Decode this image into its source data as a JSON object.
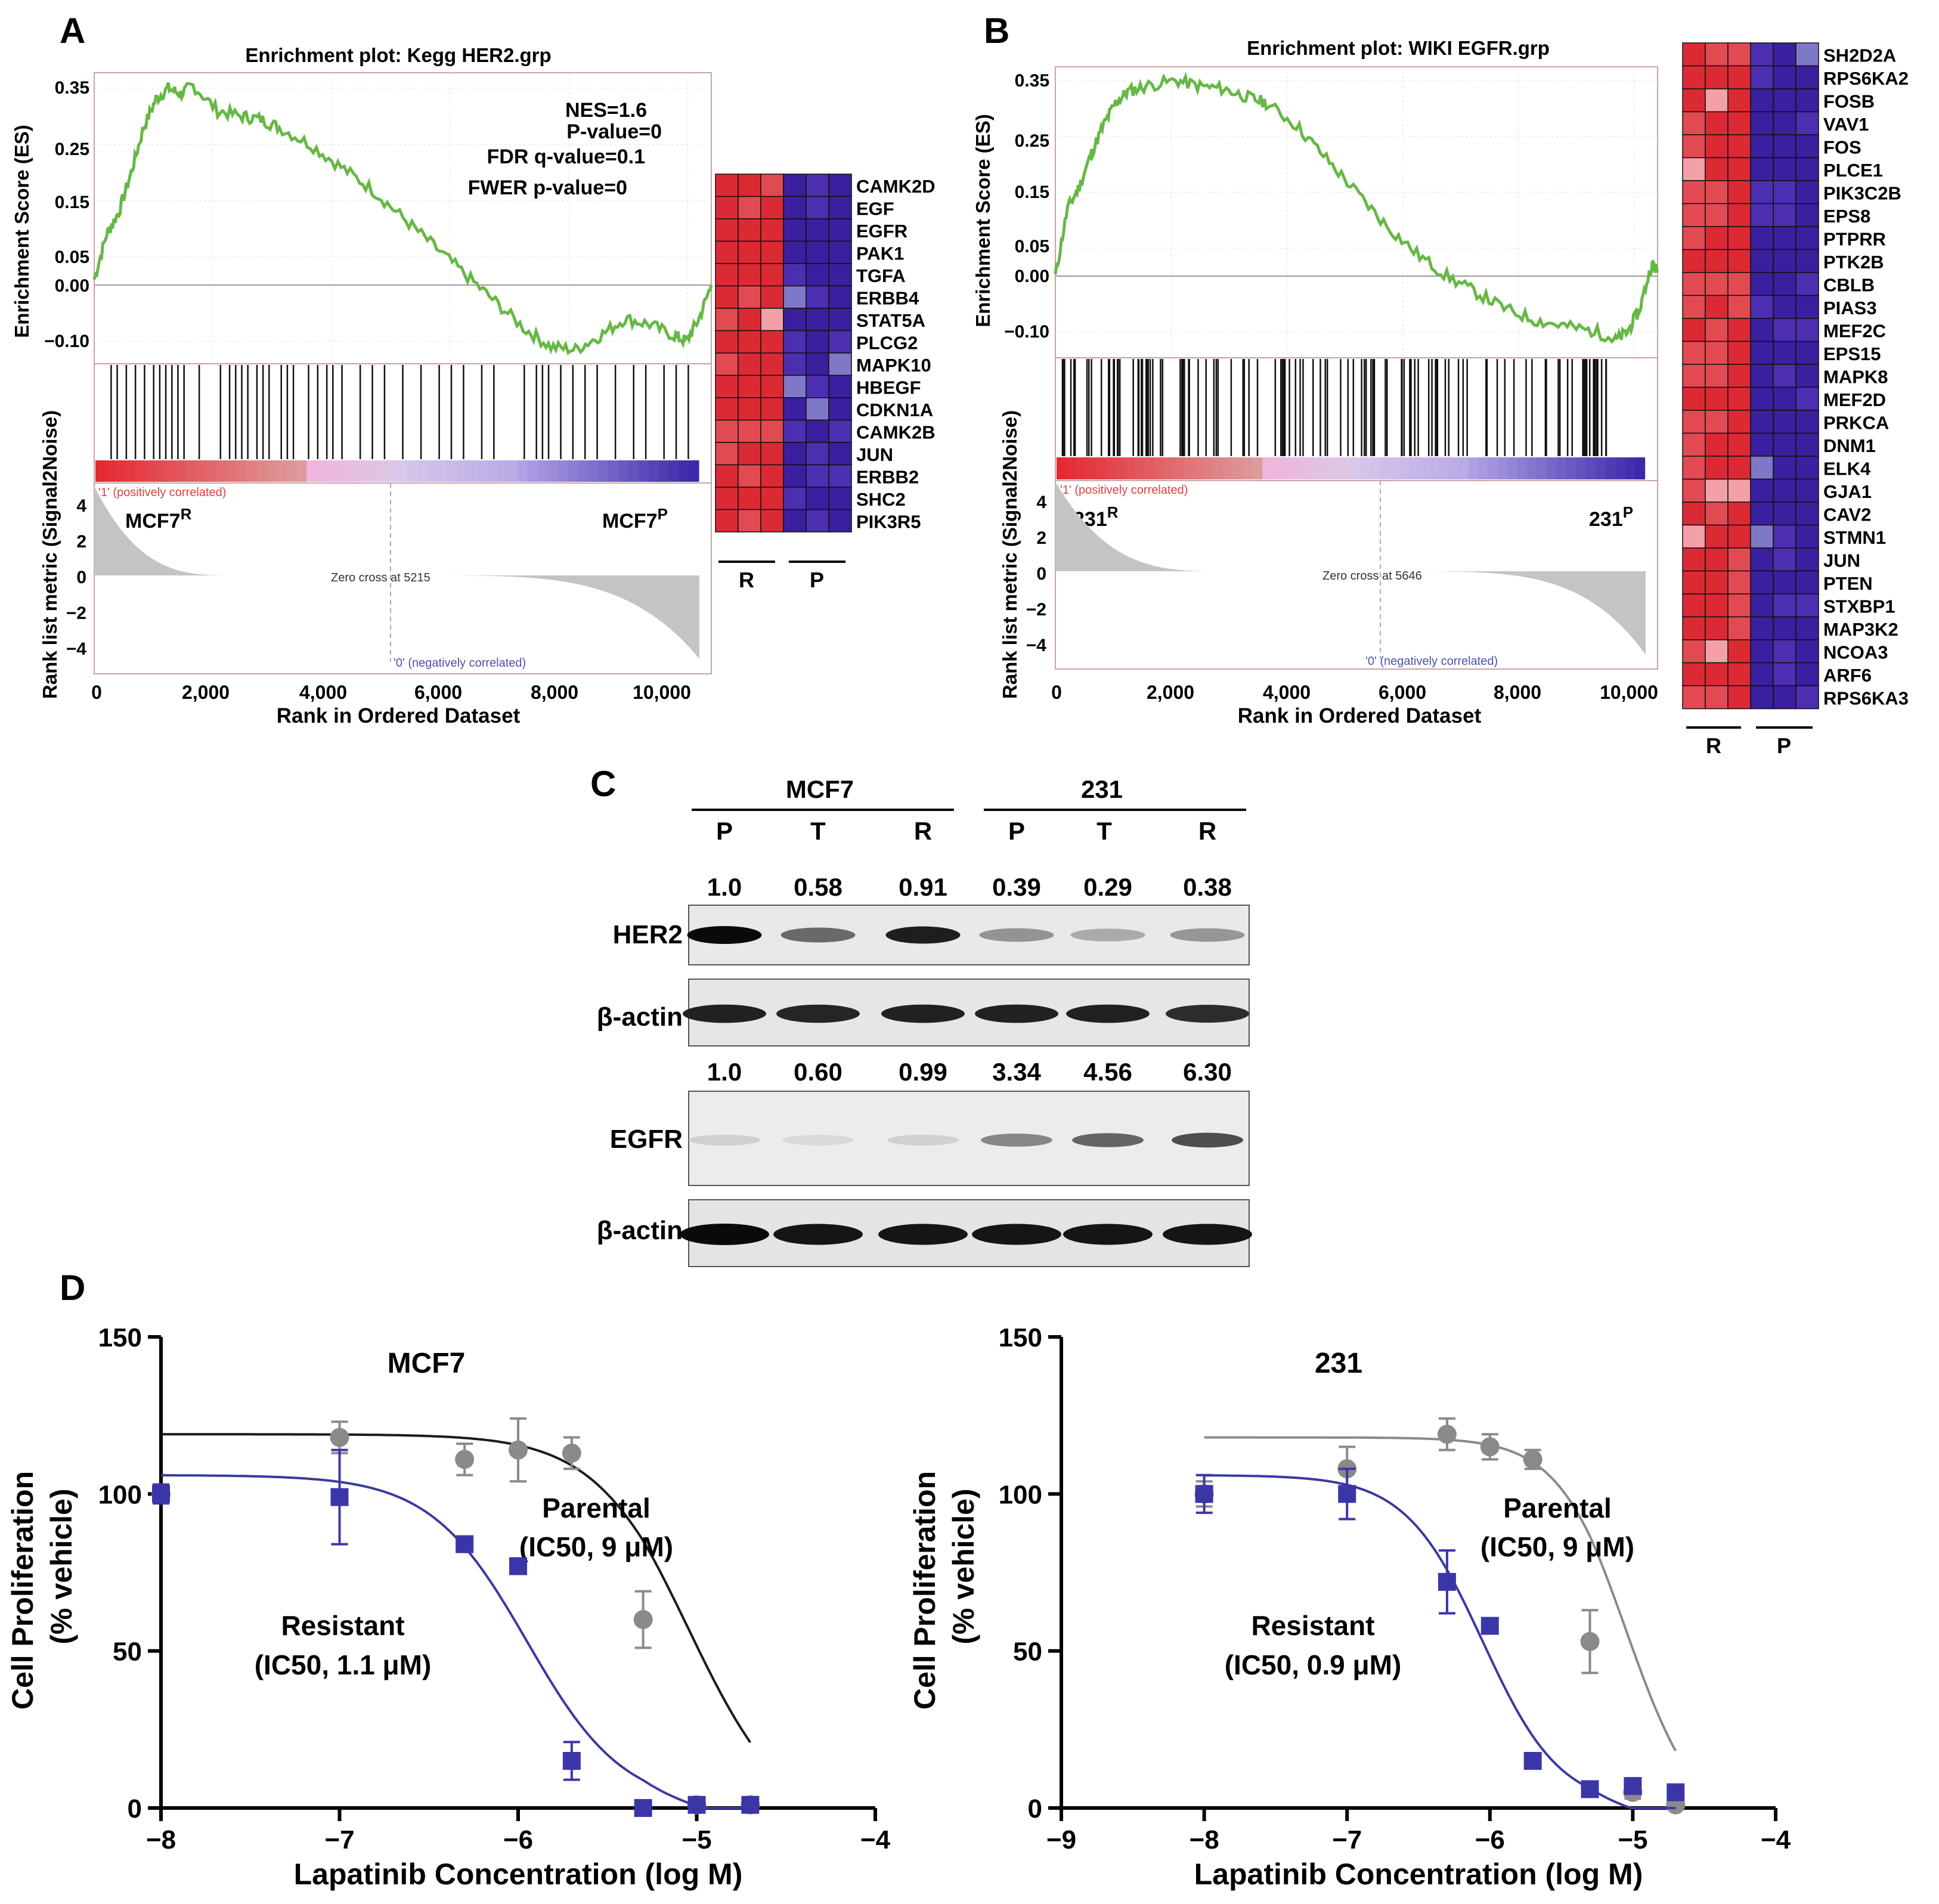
{
  "figure": {
    "panels": [
      "A",
      "B",
      "C",
      "D"
    ]
  },
  "colors": {
    "es_line": "#66b845",
    "heat_red": "#e1303a",
    "heat_blue": "#3a22a8",
    "parental": "#8a8a8a",
    "resistant": "#3b36a8",
    "fit_black": "#1a1a1a",
    "fit_blue": "#3a3aa0",
    "fit_grey": "#8a8a8a"
  },
  "panel_a": {
    "title": "Enrichment plot: Kegg HER2.grp",
    "stats": [
      "NES=1.6",
      "P-value=0",
      "FDR q-value=0.1",
      "FWER p-value=0"
    ],
    "es_axis_label": "Enrichment Score (ES)",
    "es_ticks": [
      "0.35",
      "0.25",
      "0.15",
      "0.05",
      "0.00",
      "−0.10"
    ],
    "metric_axis_label": "Rank list metric (Signal2Noise)",
    "metric_ticks": [
      "4",
      "2",
      "0",
      "−2",
      "−4"
    ],
    "pos_corr": "'1' (positively correlated)",
    "neg_corr": "'0' (negatively correlated)",
    "zero_cross": "Zero cross at 5215",
    "left_group": "MCF7",
    "left_sup": "R",
    "right_group": "MCF7",
    "right_sup": "P",
    "x_ticks": [
      "0",
      "2,000",
      "4,000",
      "6,000",
      "8,000",
      "10,000"
    ],
    "x_label": "Rank in Ordered Dataset",
    "genes": [
      "CAMK2D",
      "EGF",
      "EGFR",
      "PAK1",
      "TGFA",
      "ERBB4",
      "STAT5A",
      "PLCG2",
      "MAPK10",
      "HBEGF",
      "CDKN1A",
      "CAMK2B",
      "JUN",
      "ERBB2",
      "SHC2",
      "PIK3R5"
    ],
    "group_r": "R",
    "group_p": "P"
  },
  "panel_b": {
    "title": "Enrichment plot: WIKI EGFR.grp",
    "es_axis_label": "Enrichment Score (ES)",
    "es_ticks": [
      "0.35",
      "0.25",
      "0.15",
      "0.05",
      "0.00",
      "−0.10"
    ],
    "metric_axis_label": "Rank list metric (Signal2Noise)",
    "metric_ticks": [
      "4",
      "2",
      "0",
      "−2",
      "−4"
    ],
    "pos_corr": "'1' (positively correlated)",
    "neg_corr": "'0' (negatively correlated)",
    "zero_cross": "Zero cross at 5646",
    "left_group": "231",
    "left_sup": "R",
    "right_group": "231",
    "right_sup": "P",
    "x_ticks": [
      "0",
      "2,000",
      "4,000",
      "6,000",
      "8,000",
      "10,000"
    ],
    "x_label": "Rank in Ordered Dataset",
    "genes": [
      "SH2D2A",
      "RPS6KA2",
      "FOSB",
      "VAV1",
      "FOS",
      "PLCE1",
      "PIK3C2B",
      "EPS8",
      "PTPRR",
      "PTK2B",
      "CBLB",
      "PIAS3",
      "MEF2C",
      "EPS15",
      "MAPK8",
      "MEF2D",
      "PRKCA",
      "DNM1",
      "ELK4",
      "GJA1",
      "CAV2",
      "STMN1",
      "JUN",
      "PTEN",
      "STXBP1",
      "MAP3K2",
      "NCOA3",
      "ARF6",
      "RPS6KA3"
    ],
    "group_r": "R",
    "group_p": "P"
  },
  "panel_c": {
    "group1": "MCF7",
    "group2": "231",
    "lanes": [
      "P",
      "T",
      "R",
      "P",
      "T",
      "R"
    ],
    "her2_values": [
      "1.0",
      "0.58",
      "0.91",
      "0.39",
      "0.29",
      "0.38"
    ],
    "egfr_values": [
      "1.0",
      "0.60",
      "0.99",
      "3.34",
      "4.56",
      "6.30"
    ],
    "her2_intensity": [
      1.0,
      0.58,
      0.91,
      0.39,
      0.29,
      0.38
    ],
    "egfr_intensity": [
      0.12,
      0.08,
      0.12,
      0.45,
      0.6,
      0.7
    ],
    "actin_intensity": [
      0.9,
      0.88,
      0.9,
      0.9,
      0.9,
      0.85
    ],
    "actin2_intensity": [
      1.0,
      0.95,
      0.95,
      0.95,
      0.95,
      0.95
    ],
    "label_her2": "HER2",
    "label_actin": "β-actin",
    "label_egfr": "EGFR"
  },
  "chart_data": [
    {
      "type": "scatter",
      "title": "MCF7",
      "xlabel": "Lapatinib Concentration (log M)",
      "ylabel": "Cell Proliferation",
      "ylabel2": "(% vehicle)",
      "xlim": [
        -8,
        -4
      ],
      "ylim": [
        0,
        150
      ],
      "x_ticks": [
        "−8",
        "−7",
        "−6",
        "−5",
        "−4"
      ],
      "y_ticks": [
        "0",
        "50",
        "100",
        "150"
      ],
      "series": [
        {
          "name": "Parental",
          "annotation_line1": "Parental",
          "annotation_line2": "(IC50, 9 μM)",
          "x": [
            -8,
            -7,
            -6.3,
            -6,
            -5.7,
            -5.3,
            -5,
            -4.7
          ],
          "values": [
            100,
            118,
            111,
            114,
            113,
            60,
            1,
            1
          ],
          "err": [
            3,
            5,
            5,
            10,
            5,
            9,
            1,
            1
          ],
          "fit": {
            "top": 119,
            "log_ic50": -5.05,
            "hill": 1.0
          }
        },
        {
          "name": "Resistant",
          "annotation_line1": "Resistant",
          "annotation_line2": "(IC50, 1.1 μM)",
          "x": [
            -8,
            -7,
            -6.3,
            -6,
            -5.7,
            -5.3,
            -5,
            -4.7
          ],
          "values": [
            100,
            99,
            84,
            77,
            15,
            0,
            1,
            1
          ],
          "err": [
            3,
            15,
            2,
            2,
            6,
            1,
            1,
            1
          ],
          "fit": {
            "top": 106,
            "log_ic50": -5.95,
            "hill": 1.0
          }
        }
      ]
    },
    {
      "type": "scatter",
      "title": "231",
      "xlabel": "Lapatinib Concentration (log M)",
      "ylabel": "Cell Proliferation",
      "ylabel2": "(% vehicle)",
      "xlim": [
        -9,
        -4
      ],
      "ylim": [
        0,
        150
      ],
      "x_ticks": [
        "−9",
        "−8",
        "−7",
        "−6",
        "−5",
        "−4"
      ],
      "y_ticks": [
        "0",
        "50",
        "100",
        "150"
      ],
      "series": [
        {
          "name": "Parental",
          "annotation_line1": "Parental",
          "annotation_line2": "(IC50, 9 μM)",
          "x": [
            -8,
            -7,
            -6.3,
            -6,
            -5.7,
            -5.3,
            -5,
            -4.7
          ],
          "values": [
            100,
            108,
            119,
            115,
            111,
            53,
            5,
            1
          ],
          "err": [
            4,
            7,
            5,
            4,
            3,
            10,
            2,
            1
          ],
          "fit": {
            "top": 118,
            "log_ic50": -5.05,
            "hill": 1.1
          }
        },
        {
          "name": "Resistant",
          "annotation_line1": "Resistant",
          "annotation_line2": "(IC50, 0.9 μM)",
          "x": [
            -8,
            -7,
            -6.3,
            -6,
            -5.7,
            -5.3,
            -5,
            -4.7
          ],
          "values": [
            100,
            100,
            72,
            58,
            15,
            6,
            7,
            5
          ],
          "err": [
            6,
            8,
            10,
            2,
            2,
            1,
            1,
            1
          ],
          "fit": {
            "top": 106,
            "log_ic50": -6.05,
            "hill": 1.0
          }
        }
      ]
    }
  ]
}
